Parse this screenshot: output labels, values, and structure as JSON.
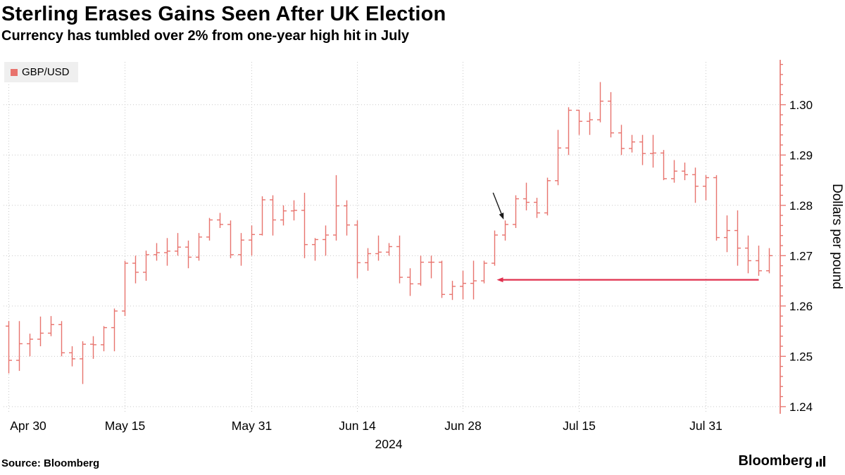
{
  "header": {
    "title": "Sterling Erases Gains Seen After UK Election",
    "subtitle": "Currency has tumbled over 2% from one-year high hit in July"
  },
  "legend": {
    "label": "GBP/USD",
    "swatch_color": "#e8736d"
  },
  "footer": {
    "source": "Source: Bloomberg",
    "logo": "Bloomberg"
  },
  "chart_data": {
    "type": "ohlc",
    "series_name": "GBP/USD",
    "title": "Sterling Erases Gains Seen After UK Election",
    "subtitle": "Currency has tumbled over 2% from one-year high hit in July",
    "ylabel": "Dollars per pound",
    "xlabel": "2024",
    "ylim": [
      1.239,
      1.3085
    ],
    "ytick_values": [
      1.24,
      1.25,
      1.26,
      1.27,
      1.28,
      1.29,
      1.3
    ],
    "ytick_labels": [
      "1.24",
      "1.25",
      "1.26",
      "1.27",
      "1.28",
      "1.29",
      "1.30"
    ],
    "xticks": [
      {
        "label": "Apr 30",
        "index": 0
      },
      {
        "label": "May 15",
        "index": 11
      },
      {
        "label": "May 31",
        "index": 23
      },
      {
        "label": "Jun 14",
        "index": 33
      },
      {
        "label": "Jun 28",
        "index": 43
      },
      {
        "label": "Jul 15",
        "index": 54
      },
      {
        "label": "Jul 31",
        "index": 66
      }
    ],
    "grid": "dotted",
    "legend_position": "top-left",
    "bar_color": "#e8736d",
    "axis_color": "#e8736d",
    "grid_color": "#c9c9c9",
    "annotation_arrow_color": "#e0304e",
    "dates": [
      "Apr 30",
      "May 1",
      "May 2",
      "May 3",
      "May 6",
      "May 7",
      "May 8",
      "May 9",
      "May 10",
      "May 13",
      "May 14",
      "May 15",
      "May 16",
      "May 17",
      "May 20",
      "May 21",
      "May 22",
      "May 23",
      "May 24",
      "May 27",
      "May 28",
      "May 29",
      "May 30",
      "May 31",
      "Jun 3",
      "Jun 4",
      "Jun 5",
      "Jun 6",
      "Jun 7",
      "Jun 10",
      "Jun 11",
      "Jun 12",
      "Jun 13",
      "Jun 14",
      "Jun 17",
      "Jun 18",
      "Jun 19",
      "Jun 20",
      "Jun 21",
      "Jun 24",
      "Jun 25",
      "Jun 26",
      "Jun 27",
      "Jun 28",
      "Jul 1",
      "Jul 2",
      "Jul 3",
      "Jul 4",
      "Jul 5",
      "Jul 8",
      "Jul 9",
      "Jul 10",
      "Jul 11",
      "Jul 12",
      "Jul 15",
      "Jul 16",
      "Jul 17",
      "Jul 18",
      "Jul 19",
      "Jul 22",
      "Jul 23",
      "Jul 24",
      "Jul 25",
      "Jul 26",
      "Jul 29",
      "Jul 30",
      "Jul 31",
      "Aug 1",
      "Aug 2",
      "Aug 5",
      "Aug 6",
      "Aug 7",
      "Aug 8"
    ],
    "open": [
      1.256,
      1.2492,
      1.2525,
      1.2534,
      1.2546,
      1.2563,
      1.2507,
      1.2495,
      1.2524,
      1.2523,
      1.2557,
      1.259,
      1.2685,
      1.2667,
      1.2702,
      1.2706,
      1.2709,
      1.2717,
      1.2697,
      1.2737,
      1.2771,
      1.2762,
      1.2702,
      1.2731,
      1.2742,
      1.2811,
      1.2771,
      1.2789,
      1.279,
      1.2722,
      1.2732,
      1.2741,
      1.2799,
      1.2761,
      1.2686,
      1.2704,
      1.2707,
      1.2718,
      1.2657,
      1.2644,
      1.2687,
      1.2687,
      1.2623,
      1.2639,
      1.2645,
      1.265,
      1.2685,
      1.2741,
      1.2762,
      1.2813,
      1.2806,
      1.2785,
      1.2849,
      1.2914,
      1.2989,
      1.2967,
      1.297,
      1.3007,
      1.2944,
      1.2913,
      1.2926,
      1.2903,
      1.2904,
      1.2853,
      1.2868,
      1.2861,
      1.2838,
      1.2855,
      1.2736,
      1.275,
      1.2715,
      1.269,
      1.267
    ],
    "high": [
      1.257,
      1.257,
      1.2545,
      1.2579,
      1.258,
      1.257,
      1.252,
      1.253,
      1.254,
      1.256,
      1.2595,
      1.269,
      1.27,
      1.271,
      1.2725,
      1.2735,
      1.2745,
      1.273,
      1.2745,
      1.2775,
      1.2785,
      1.277,
      1.2745,
      1.276,
      1.2818,
      1.282,
      1.28,
      1.281,
      1.2825,
      1.2735,
      1.276,
      1.286,
      1.281,
      1.277,
      1.2715,
      1.274,
      1.2725,
      1.274,
      1.2675,
      1.27,
      1.27,
      1.269,
      1.265,
      1.267,
      1.269,
      1.269,
      1.275,
      1.277,
      1.282,
      1.2845,
      1.2815,
      1.2855,
      1.295,
      1.2995,
      1.299,
      1.2985,
      1.3045,
      1.3025,
      1.296,
      1.294,
      1.294,
      1.294,
      1.291,
      1.289,
      1.2885,
      1.2875,
      1.286,
      1.286,
      1.278,
      1.279,
      1.274,
      1.272,
      1.2715
    ],
    "low": [
      1.2466,
      1.2471,
      1.25,
      1.252,
      1.254,
      1.25,
      1.248,
      1.2445,
      1.2495,
      1.251,
      1.251,
      1.258,
      1.2645,
      1.265,
      1.269,
      1.268,
      1.27,
      1.2675,
      1.269,
      1.273,
      1.2755,
      1.2695,
      1.268,
      1.27,
      1.274,
      1.274,
      1.276,
      1.277,
      1.2695,
      1.269,
      1.27,
      1.273,
      1.274,
      1.2655,
      1.267,
      1.269,
      1.27,
      1.2645,
      1.262,
      1.264,
      1.2655,
      1.2616,
      1.2612,
      1.2613,
      1.2613,
      1.2645,
      1.268,
      1.273,
      1.2755,
      1.279,
      1.2775,
      1.278,
      1.284,
      1.29,
      1.294,
      1.294,
      1.2965,
      1.2935,
      1.29,
      1.2905,
      1.288,
      1.2875,
      1.285,
      1.2845,
      1.285,
      1.2805,
      1.281,
      1.273,
      1.2707,
      1.268,
      1.2665,
      1.266,
      1.2665
    ],
    "close": [
      1.2492,
      1.2525,
      1.2534,
      1.2546,
      1.2563,
      1.2507,
      1.2495,
      1.2524,
      1.2523,
      1.2557,
      1.259,
      1.2685,
      1.2667,
      1.2702,
      1.2706,
      1.2709,
      1.2717,
      1.2697,
      1.2737,
      1.2771,
      1.2762,
      1.2702,
      1.2731,
      1.2742,
      1.2811,
      1.2771,
      1.2789,
      1.279,
      1.2722,
      1.2732,
      1.2741,
      1.2799,
      1.2761,
      1.2686,
      1.2704,
      1.2707,
      1.2718,
      1.2657,
      1.2644,
      1.2687,
      1.2687,
      1.2623,
      1.2639,
      1.2645,
      1.265,
      1.2685,
      1.2741,
      1.2762,
      1.2813,
      1.2806,
      1.2785,
      1.2849,
      1.2914,
      1.2989,
      1.2967,
      1.297,
      1.3007,
      1.2944,
      1.2913,
      1.2926,
      1.2903,
      1.2904,
      1.2853,
      1.2868,
      1.2861,
      1.2838,
      1.2855,
      1.2736,
      1.275,
      1.2715,
      1.269,
      1.267,
      1.27
    ],
    "annotations": [
      {
        "name": "erased-gains-arrow",
        "color": "#e0304e",
        "width": 2.2,
        "from_index": 71,
        "from_value": 1.2652,
        "to_index": 46.2,
        "to_value": 1.2652
      },
      {
        "name": "post-election-pointer-arrow",
        "color": "#1a1a1a",
        "width": 1.4,
        "from_index": 45.85,
        "from_value": 1.2825,
        "to_index": 46.85,
        "to_value": 1.2772
      }
    ]
  }
}
